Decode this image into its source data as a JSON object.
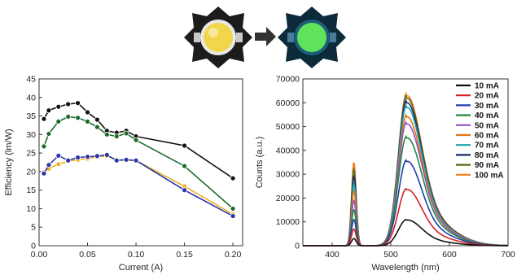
{
  "photos": {
    "before": {
      "led_color": "#f2d64a",
      "board_color": "#1c1c1c"
    },
    "after": {
      "led_color": "#5fe35a",
      "board_color": "#0d2a3a"
    },
    "arrow_icon": "right-arrow-icon"
  },
  "chart_data": [
    {
      "type": "line",
      "xlabel": "Current (A)",
      "ylabel": "Efficiency (lm/W)",
      "xlim": [
        0,
        0.21
      ],
      "ylim": [
        0,
        45
      ],
      "xticks": [
        0.0,
        0.05,
        0.1,
        0.15,
        0.2
      ],
      "xtick_labels": [
        "0.00",
        "0.05",
        "0.10",
        "0.15",
        "0.20"
      ],
      "yticks": [
        0,
        5,
        10,
        15,
        20,
        25,
        30,
        35,
        40,
        45
      ],
      "ytick_labels": [
        "0",
        "5",
        "10",
        "15",
        "20",
        "25",
        "30",
        "35",
        "40",
        "45"
      ],
      "grid": false,
      "series": [
        {
          "color": "#111111",
          "x": [
            0.005,
            0.01,
            0.02,
            0.03,
            0.04,
            0.05,
            0.06,
            0.07,
            0.08,
            0.09,
            0.1,
            0.15,
            0.2
          ],
          "y": [
            34.2,
            36.5,
            37.5,
            38.2,
            38.5,
            36.0,
            34.0,
            31.0,
            30.5,
            31.0,
            29.5,
            27.0,
            18.2
          ]
        },
        {
          "color": "#1a6b2a",
          "x": [
            0.005,
            0.01,
            0.02,
            0.03,
            0.04,
            0.05,
            0.06,
            0.07,
            0.08,
            0.09,
            0.1,
            0.15,
            0.2
          ],
          "y": [
            26.8,
            30.2,
            33.5,
            34.8,
            34.5,
            33.5,
            32.0,
            30.0,
            29.5,
            30.3,
            28.5,
            21.5,
            10.0
          ]
        },
        {
          "color": "#f0b020",
          "x": [
            0.005,
            0.01,
            0.02,
            0.03,
            0.04,
            0.05,
            0.06,
            0.07,
            0.08,
            0.09,
            0.1,
            0.15,
            0.2
          ],
          "y": [
            19.8,
            20.8,
            22.0,
            22.8,
            23.2,
            23.5,
            24.0,
            24.2,
            23.2,
            23.0,
            23.0,
            16.0,
            8.5
          ]
        },
        {
          "color": "#2a35a8",
          "x": [
            0.005,
            0.01,
            0.02,
            0.03,
            0.04,
            0.05,
            0.06,
            0.07,
            0.08,
            0.09,
            0.1,
            0.15,
            0.2
          ],
          "y": [
            19.5,
            21.8,
            24.3,
            23.0,
            23.8,
            24.0,
            24.2,
            24.5,
            23.0,
            23.2,
            23.0,
            15.0,
            8.0
          ]
        }
      ]
    },
    {
      "type": "line",
      "xlabel": "Wavelength (nm)",
      "ylabel": "Counts (a.u.)",
      "xlim": [
        350,
        700
      ],
      "ylim": [
        0,
        70000
      ],
      "xticks": [
        400,
        500,
        600,
        700
      ],
      "xtick_labels": [
        "400",
        "500",
        "600",
        "700"
      ],
      "yticks": [
        0,
        10000,
        20000,
        30000,
        40000,
        50000,
        60000,
        70000
      ],
      "ytick_labels": [
        "0",
        "10000",
        "20000",
        "30000",
        "40000",
        "50000",
        "60000",
        "70000"
      ],
      "grid": false,
      "legend_position": "top-right",
      "peak1_nm": 437,
      "peak2_nm": 527,
      "series": [
        {
          "name": "10 mA",
          "color": "#111111",
          "peak1": 3000,
          "peak2": 11000
        },
        {
          "name": "20 mA",
          "color": "#d62020",
          "peak1": 7000,
          "peak2": 24000
        },
        {
          "name": "30 mA",
          "color": "#1f3fa8",
          "peak1": 11000,
          "peak2": 36000
        },
        {
          "name": "40 mA",
          "color": "#1f8a3a",
          "peak1": 15000,
          "peak2": 46000
        },
        {
          "name": "50 mA",
          "color": "#9a4fc0",
          "peak1": 19000,
          "peak2": 52000
        },
        {
          "name": "60 mA",
          "color": "#e07a10",
          "peak1": 23000,
          "peak2": 55000
        },
        {
          "name": "70 mA",
          "color": "#1aa0b0",
          "peak1": 26000,
          "peak2": 59000
        },
        {
          "name": "80 mA",
          "color": "#1a2a6a",
          "peak1": 29000,
          "peak2": 61000
        },
        {
          "name": "90 mA",
          "color": "#5a6a1a",
          "peak1": 32000,
          "peak2": 63000
        },
        {
          "name": "100 mA",
          "color": "#f08020",
          "peak1": 35000,
          "peak2": 64000
        }
      ]
    }
  ]
}
